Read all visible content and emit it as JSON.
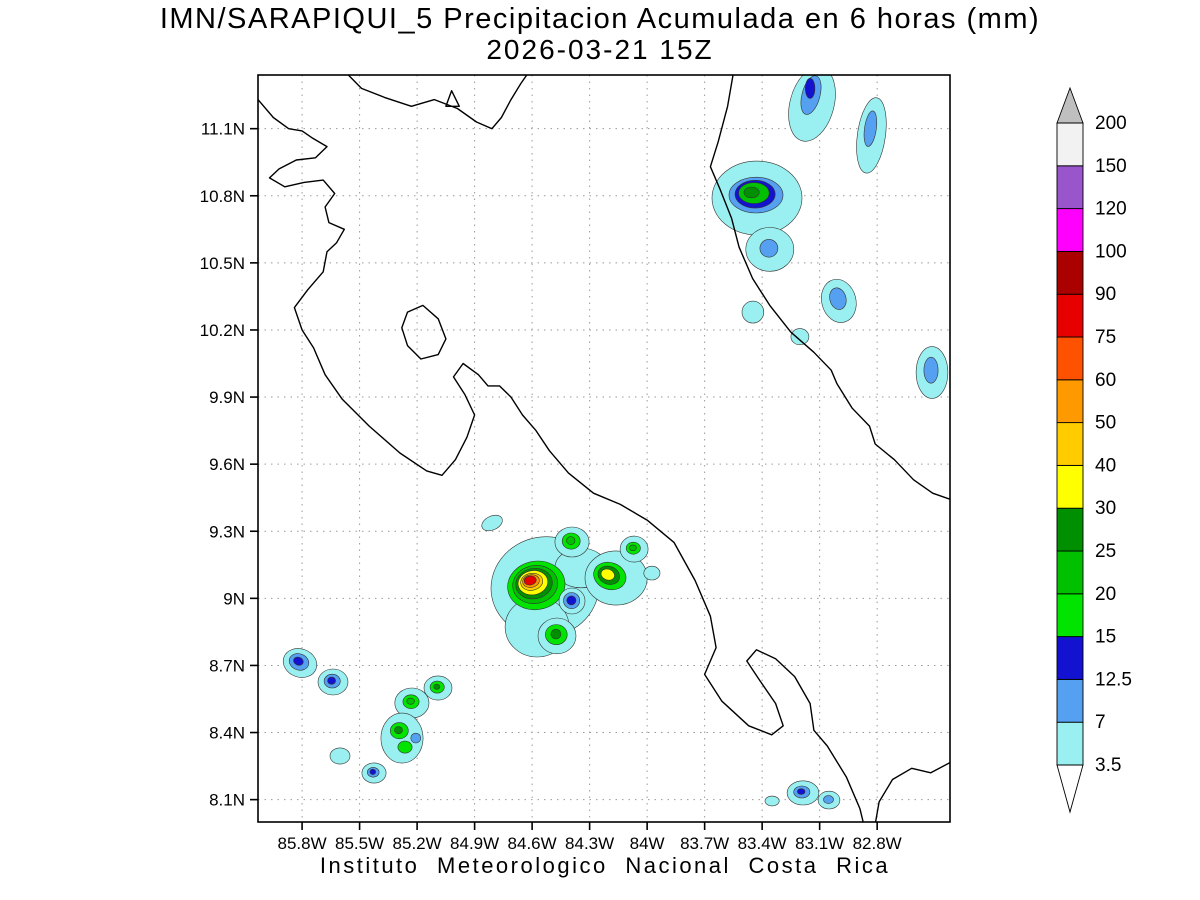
{
  "title": {
    "line1": "IMN/SARAPIQUI_5 Precipitacion Acumulada en 6 horas (mm)",
    "line2": "2026-03-21 15Z"
  },
  "footer": "Instituto Meteorologico Nacional Costa Rica",
  "chart_data": {
    "type": "map",
    "subtype": "filled-contour-precipitation",
    "units": "mm",
    "region": "Costa Rica",
    "projection": {
      "lon_west_edge": 86.03,
      "lon_east_edge": 82.42,
      "lat_north_edge": 11.34,
      "lat_south_edge": 8.0
    },
    "x_ticks": [
      {
        "lon": 85.8,
        "label": "85.8W"
      },
      {
        "lon": 85.5,
        "label": "85.5W"
      },
      {
        "lon": 85.2,
        "label": "85.2W"
      },
      {
        "lon": 84.9,
        "label": "84.9W"
      },
      {
        "lon": 84.6,
        "label": "84.6W"
      },
      {
        "lon": 84.3,
        "label": "84.3W"
      },
      {
        "lon": 84.0,
        "label": "84W"
      },
      {
        "lon": 83.7,
        "label": "83.7W"
      },
      {
        "lon": 83.4,
        "label": "83.4W"
      },
      {
        "lon": 83.1,
        "label": "83.1W"
      },
      {
        "lon": 82.8,
        "label": "82.8W"
      }
    ],
    "y_ticks": [
      {
        "lat": 11.1,
        "label": "11.1N"
      },
      {
        "lat": 10.8,
        "label": "10.8N"
      },
      {
        "lat": 10.5,
        "label": "10.5N"
      },
      {
        "lat": 10.2,
        "label": "10.2N"
      },
      {
        "lat": 9.9,
        "label": "9.9N"
      },
      {
        "lat": 9.6,
        "label": "9.6N"
      },
      {
        "lat": 9.3,
        "label": "9.3N"
      },
      {
        "lat": 9.0,
        "label": "9N"
      },
      {
        "lat": 8.7,
        "label": "8.7N"
      },
      {
        "lat": 8.4,
        "label": "8.4N"
      },
      {
        "lat": 8.1,
        "label": "8.1N"
      }
    ],
    "palette": {
      "cyan": "#9af0f0",
      "ltblue": "#55a0f0",
      "dblue": "#1212d0",
      "bgreen": "#00e400",
      "green": "#00c000",
      "dgreen": "#008f00",
      "yellow": "#ffff00",
      "gold": "#ffcc00",
      "orange": "#ff9900",
      "redorange": "#ff5200",
      "red": "#e60000",
      "dred": "#aa0000",
      "magenta": "#ff00ff",
      "purple": "#9955cc",
      "white150": "#f2f2f2"
    },
    "colorbar": {
      "levels": [
        "3.5",
        "7",
        "12.5",
        "15",
        "20",
        "25",
        "30",
        "40",
        "50",
        "60",
        "75",
        "90",
        "100",
        "120",
        "150",
        "200"
      ],
      "colors_bottom_to_top": [
        "cyan",
        "ltblue",
        "dblue",
        "bgreen",
        "green",
        "dgreen",
        "yellow",
        "gold",
        "orange",
        "redorange",
        "red",
        "dred",
        "magenta",
        "purple",
        "white150"
      ],
      "over_arrow_color": "#bfbfbf",
      "under_arrow_color": "#ffffff"
    },
    "coastlines": {
      "open": [
        [
          [
            86.03,
            11.23
          ],
          [
            85.95,
            11.15
          ],
          [
            85.87,
            11.1
          ],
          [
            85.8,
            11.09
          ],
          [
            85.75,
            11.06
          ],
          [
            85.67,
            11.02
          ],
          [
            85.73,
            10.97
          ],
          [
            85.83,
            10.96
          ],
          [
            85.92,
            10.92
          ],
          [
            85.97,
            10.88
          ],
          [
            85.89,
            10.84
          ],
          [
            85.79,
            10.86
          ],
          [
            85.69,
            10.87
          ],
          [
            85.63,
            10.81
          ],
          [
            85.68,
            10.75
          ],
          [
            85.66,
            10.68
          ],
          [
            85.58,
            10.65
          ],
          [
            85.62,
            10.59
          ],
          [
            85.67,
            10.55
          ],
          [
            85.69,
            10.46
          ],
          [
            85.77,
            10.38
          ],
          [
            85.84,
            10.3
          ],
          [
            85.8,
            10.2
          ],
          [
            85.74,
            10.12
          ],
          [
            85.68,
            10.0
          ],
          [
            85.59,
            9.89
          ],
          [
            85.45,
            9.77
          ],
          [
            85.29,
            9.65
          ],
          [
            85.15,
            9.57
          ],
          [
            85.07,
            9.55
          ],
          [
            85.0,
            9.62
          ],
          [
            84.94,
            9.72
          ],
          [
            84.9,
            9.82
          ],
          [
            84.95,
            9.91
          ],
          [
            85.01,
            9.99
          ],
          [
            84.96,
            10.05
          ],
          [
            84.88,
            10.0
          ],
          [
            84.83,
            9.95
          ],
          [
            84.77,
            9.95
          ],
          [
            84.71,
            9.9
          ],
          [
            84.65,
            9.82
          ],
          [
            84.58,
            9.75
          ],
          [
            84.51,
            9.66
          ],
          [
            84.41,
            9.56
          ],
          [
            84.28,
            9.47
          ],
          [
            84.14,
            9.42
          ],
          [
            84.0,
            9.35
          ],
          [
            83.86,
            9.25
          ],
          [
            83.75,
            9.08
          ],
          [
            83.67,
            8.92
          ],
          [
            83.64,
            8.78
          ],
          [
            83.7,
            8.66
          ],
          [
            83.61,
            8.54
          ],
          [
            83.47,
            8.43
          ],
          [
            83.35,
            8.39
          ],
          [
            83.29,
            8.43
          ],
          [
            83.33,
            8.53
          ],
          [
            83.41,
            8.63
          ],
          [
            83.48,
            8.72
          ],
          [
            83.43,
            8.77
          ],
          [
            83.33,
            8.73
          ],
          [
            83.23,
            8.65
          ],
          [
            83.15,
            8.53
          ],
          [
            83.13,
            8.41
          ],
          [
            83.06,
            8.34
          ],
          [
            82.96,
            8.2
          ],
          [
            82.89,
            8.06
          ],
          [
            82.87,
            7.99
          ]
        ],
        [
          [
            82.81,
            7.99
          ],
          [
            82.79,
            8.09
          ],
          [
            82.72,
            8.19
          ],
          [
            82.62,
            8.24
          ],
          [
            82.52,
            8.22
          ],
          [
            82.41,
            8.27
          ]
        ],
        [
          [
            85.57,
            11.35
          ],
          [
            85.49,
            11.28
          ],
          [
            85.37,
            11.24
          ],
          [
            85.23,
            11.2
          ],
          [
            85.11,
            11.23
          ],
          [
            84.99,
            11.19
          ],
          [
            84.89,
            11.13
          ],
          [
            84.81,
            11.1
          ],
          [
            84.76,
            11.15
          ],
          [
            84.71,
            11.23
          ],
          [
            84.66,
            11.3
          ],
          [
            84.62,
            11.35
          ]
        ],
        [
          [
            83.55,
            11.35
          ],
          [
            83.58,
            11.2
          ],
          [
            83.63,
            11.04
          ],
          [
            83.67,
            10.93
          ],
          [
            83.62,
            10.83
          ],
          [
            83.56,
            10.7
          ],
          [
            83.52,
            10.57
          ],
          [
            83.45,
            10.43
          ],
          [
            83.36,
            10.31
          ],
          [
            83.25,
            10.19
          ],
          [
            83.13,
            10.1
          ],
          [
            83.04,
            10.02
          ],
          [
            83.01,
            9.96
          ],
          [
            82.93,
            9.85
          ],
          [
            82.84,
            9.77
          ],
          [
            82.81,
            9.69
          ],
          [
            82.71,
            9.62
          ],
          [
            82.61,
            9.53
          ],
          [
            82.51,
            9.47
          ],
          [
            82.41,
            9.44
          ]
        ]
      ],
      "closed": [
        [
          [
            85.25,
            10.28
          ],
          [
            85.17,
            10.31
          ],
          [
            85.09,
            10.25
          ],
          [
            85.05,
            10.16
          ],
          [
            85.09,
            10.09
          ],
          [
            85.18,
            10.07
          ],
          [
            85.25,
            10.13
          ],
          [
            85.28,
            10.21
          ]
        ],
        [
          [
            85.05,
            11.2
          ],
          [
            84.98,
            11.2
          ],
          [
            85.02,
            11.27
          ]
        ]
      ]
    },
    "precip_cells_format": "[lon_W, lat_N, rx_deg, ry_deg, rotation_deg, palette_key]",
    "precip_cells": [
      [
        83.14,
        11.21,
        0.115,
        0.17,
        15,
        "cyan"
      ],
      [
        83.145,
        11.25,
        0.047,
        0.089,
        15,
        "ltblue"
      ],
      [
        83.15,
        11.28,
        0.025,
        0.045,
        0,
        "dblue"
      ],
      [
        82.83,
        11.07,
        0.073,
        0.17,
        8,
        "cyan"
      ],
      [
        82.835,
        11.1,
        0.031,
        0.08,
        8,
        "ltblue"
      ],
      [
        83.427,
        10.79,
        0.235,
        0.165,
        0,
        "cyan"
      ],
      [
        83.432,
        10.803,
        0.141,
        0.08,
        0,
        "ltblue"
      ],
      [
        83.437,
        10.807,
        0.105,
        0.062,
        0,
        "dblue"
      ],
      [
        83.443,
        10.812,
        0.08,
        0.047,
        0,
        "green"
      ],
      [
        83.455,
        10.815,
        0.04,
        0.024,
        0,
        "dgreen"
      ],
      [
        83.36,
        10.56,
        0.125,
        0.098,
        0,
        "cyan"
      ],
      [
        83.365,
        10.565,
        0.047,
        0.04,
        0,
        "ltblue"
      ],
      [
        83.448,
        10.28,
        0.057,
        0.049,
        0,
        "cyan"
      ],
      [
        83.0,
        10.33,
        0.089,
        0.098,
        -15,
        "cyan"
      ],
      [
        83.005,
        10.34,
        0.042,
        0.049,
        -15,
        "ltblue"
      ],
      [
        83.203,
        10.17,
        0.047,
        0.036,
        0,
        "cyan"
      ],
      [
        82.514,
        10.01,
        0.083,
        0.116,
        0,
        "cyan"
      ],
      [
        82.519,
        10.02,
        0.037,
        0.058,
        0,
        "ltblue"
      ],
      [
        84.533,
        9.051,
        0.282,
        0.224,
        -10,
        "cyan"
      ],
      [
        84.574,
        8.872,
        0.167,
        0.134,
        0,
        "cyan"
      ],
      [
        84.345,
        9.136,
        0.136,
        0.089,
        0,
        "cyan"
      ],
      [
        84.578,
        9.058,
        0.15,
        0.108,
        -10,
        "bgreen"
      ],
      [
        84.584,
        9.062,
        0.118,
        0.085,
        -10,
        "green"
      ],
      [
        84.59,
        9.066,
        0.096,
        0.068,
        -10,
        "dgreen"
      ],
      [
        84.596,
        9.07,
        0.078,
        0.054,
        -10,
        "yellow"
      ],
      [
        84.602,
        9.074,
        0.058,
        0.038,
        -10,
        "gold"
      ],
      [
        84.606,
        9.077,
        0.044,
        0.028,
        -10,
        "orange"
      ],
      [
        84.61,
        9.08,
        0.032,
        0.02,
        -10,
        "red"
      ],
      [
        84.392,
        9.252,
        0.089,
        0.067,
        0,
        "cyan"
      ],
      [
        84.396,
        9.256,
        0.047,
        0.036,
        0,
        "bgreen"
      ],
      [
        84.398,
        9.258,
        0.022,
        0.018,
        0,
        "green"
      ],
      [
        84.162,
        9.091,
        0.162,
        0.121,
        0,
        "cyan"
      ],
      [
        84.195,
        9.1,
        0.086,
        0.06,
        20,
        "bgreen"
      ],
      [
        84.2,
        9.103,
        0.058,
        0.04,
        20,
        "dgreen"
      ],
      [
        84.205,
        9.106,
        0.036,
        0.024,
        20,
        "yellow"
      ],
      [
        84.068,
        9.22,
        0.073,
        0.058,
        0,
        "cyan"
      ],
      [
        84.072,
        9.224,
        0.037,
        0.027,
        0,
        "bgreen"
      ],
      [
        84.074,
        9.226,
        0.018,
        0.013,
        0,
        "green"
      ],
      [
        84.392,
        8.988,
        0.068,
        0.058,
        0,
        "cyan"
      ],
      [
        84.394,
        8.99,
        0.042,
        0.036,
        0,
        "ltblue"
      ],
      [
        84.395,
        8.991,
        0.024,
        0.02,
        0,
        "dblue"
      ],
      [
        84.47,
        8.832,
        0.099,
        0.08,
        0,
        "cyan"
      ],
      [
        84.474,
        8.838,
        0.057,
        0.045,
        0,
        "bgreen"
      ],
      [
        84.476,
        8.84,
        0.026,
        0.022,
        0,
        "dgreen"
      ],
      [
        84.809,
        9.337,
        0.057,
        0.031,
        -25,
        "cyan"
      ],
      [
        83.975,
        9.113,
        0.042,
        0.031,
        0,
        "cyan"
      ],
      [
        85.811,
        8.711,
        0.089,
        0.063,
        20,
        "cyan"
      ],
      [
        85.816,
        8.716,
        0.052,
        0.036,
        20,
        "ltblue"
      ],
      [
        85.819,
        8.719,
        0.026,
        0.018,
        20,
        "dblue"
      ],
      [
        85.639,
        8.626,
        0.078,
        0.058,
        0,
        "cyan"
      ],
      [
        85.643,
        8.63,
        0.042,
        0.031,
        0,
        "ltblue"
      ],
      [
        85.646,
        8.632,
        0.021,
        0.016,
        0,
        "dblue"
      ],
      [
        85.227,
        8.532,
        0.089,
        0.067,
        0,
        "cyan"
      ],
      [
        85.232,
        8.538,
        0.042,
        0.031,
        0,
        "bgreen"
      ],
      [
        85.234,
        8.54,
        0.02,
        0.014,
        0,
        "green"
      ],
      [
        85.091,
        8.599,
        0.073,
        0.054,
        0,
        "cyan"
      ],
      [
        85.095,
        8.603,
        0.037,
        0.027,
        0,
        "bgreen"
      ],
      [
        85.097,
        8.605,
        0.016,
        0.012,
        0,
        "dgreen"
      ],
      [
        85.279,
        8.375,
        0.11,
        0.112,
        0,
        "cyan"
      ],
      [
        85.293,
        8.408,
        0.047,
        0.036,
        0,
        "bgreen"
      ],
      [
        85.297,
        8.411,
        0.021,
        0.016,
        0,
        "dgreen"
      ],
      [
        85.263,
        8.335,
        0.037,
        0.027,
        0,
        "bgreen"
      ],
      [
        85.207,
        8.375,
        0.026,
        0.022,
        0,
        "ltblue"
      ],
      [
        85.602,
        8.295,
        0.052,
        0.036,
        0,
        "cyan"
      ],
      [
        85.425,
        8.219,
        0.063,
        0.045,
        0,
        "cyan"
      ],
      [
        85.429,
        8.222,
        0.031,
        0.022,
        0,
        "ltblue"
      ],
      [
        85.431,
        8.224,
        0.015,
        0.012,
        0,
        "dblue"
      ],
      [
        83.187,
        8.13,
        0.083,
        0.054,
        0,
        "cyan"
      ],
      [
        83.193,
        8.134,
        0.042,
        0.027,
        0,
        "ltblue"
      ],
      [
        83.196,
        8.136,
        0.02,
        0.013,
        0,
        "dblue"
      ],
      [
        83.051,
        8.098,
        0.057,
        0.04,
        0,
        "cyan"
      ],
      [
        83.054,
        8.1,
        0.026,
        0.018,
        0,
        "ltblue"
      ],
      [
        83.348,
        8.094,
        0.037,
        0.022,
        0,
        "cyan"
      ]
    ]
  }
}
